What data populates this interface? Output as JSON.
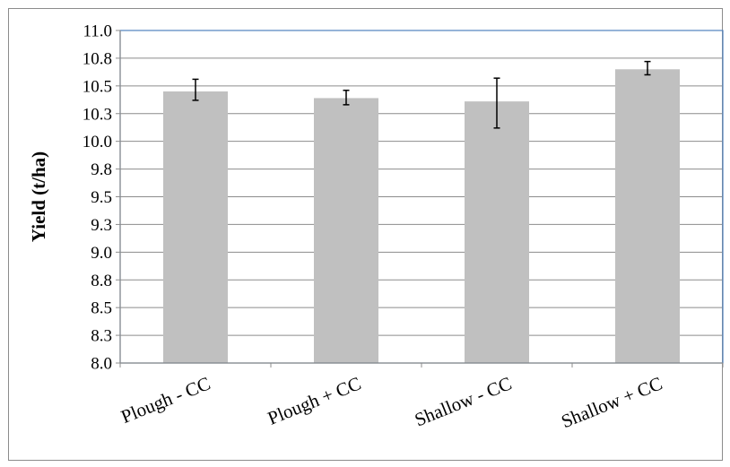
{
  "chart_data": {
    "type": "bar",
    "title": "",
    "xlabel": "",
    "ylabel": "Yield (t/ha)",
    "categories": [
      "Plough - CC",
      "Plough + CC",
      "Shallow - CC",
      "Shallow + CC"
    ],
    "values": [
      10.45,
      10.39,
      10.36,
      10.65
    ],
    "error_low": [
      10.37,
      10.33,
      10.12,
      10.6
    ],
    "error_high": [
      10.56,
      10.46,
      10.57,
      10.72
    ],
    "ylim": [
      8.0,
      11.0
    ],
    "yticks": [
      8.0,
      8.25,
      8.5,
      8.75,
      9.0,
      9.25,
      9.5,
      9.75,
      10.0,
      10.25,
      10.5,
      10.75,
      11.0
    ],
    "ytick_labels": [
      "8.0",
      "8.3",
      "8.5",
      "8.8",
      "9.0",
      "9.3",
      "9.5",
      "9.8",
      "10.0",
      "10.3",
      "10.5",
      "10.8",
      "11.0"
    ],
    "grid": true,
    "legend": "none",
    "bar_color": "#c0c0c0",
    "grid_color": "#8c8c8c",
    "plot_border_color": "#4f81bd"
  }
}
